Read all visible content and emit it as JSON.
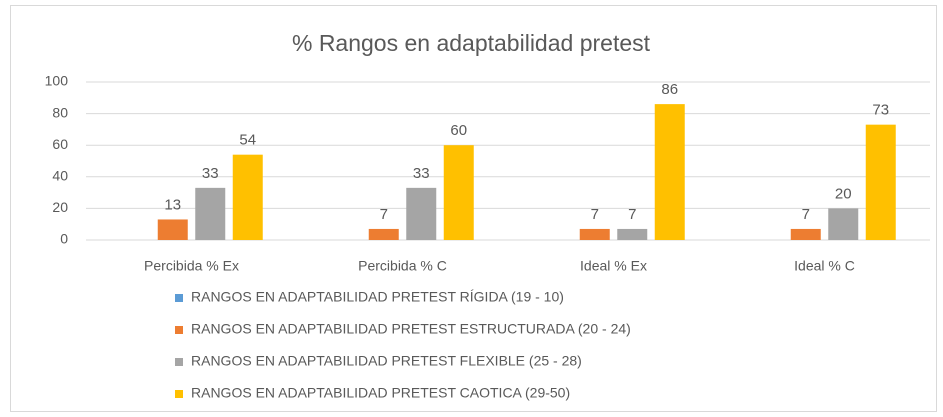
{
  "chart_data": {
    "type": "bar",
    "title": "% Rangos en adaptabilidad pretest",
    "categories": [
      "Percibida % Ex",
      "Percibida % C",
      "Ideal % Ex",
      "Ideal % C"
    ],
    "series": [
      {
        "name": "RANGOS EN ADAPTABILIDAD PRETEST RÍGIDA (19 - 10)",
        "color": "#5b9bd5",
        "values": [
          null,
          null,
          null,
          null
        ]
      },
      {
        "name": "RANGOS EN ADAPTABILIDAD PRETEST ESTRUCTURADA (20 - 24)",
        "color": "#ed7d31",
        "values": [
          13,
          7,
          7,
          7
        ]
      },
      {
        "name": "RANGOS EN ADAPTABILIDAD PRETEST FLEXIBLE  (25 - 28)",
        "color": "#a5a5a5",
        "values": [
          33,
          33,
          7,
          20
        ]
      },
      {
        "name": "RANGOS EN ADAPTABILIDAD PRETEST CAOTICA (29-50)",
        "color": "#ffc000",
        "values": [
          54,
          60,
          86,
          73
        ]
      }
    ],
    "ylim": [
      0,
      100
    ],
    "yticks": [
      0,
      20,
      40,
      60,
      80,
      100
    ],
    "grid": true,
    "legend": "bottom"
  }
}
